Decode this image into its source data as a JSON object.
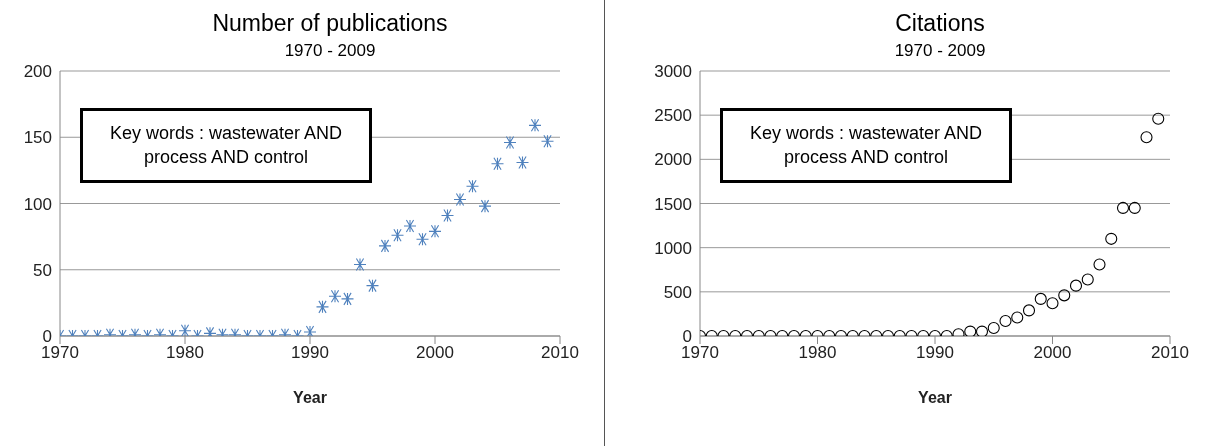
{
  "chart_data": [
    {
      "type": "scatter",
      "title": "Number of publications",
      "subtitle": "1970 - 2009",
      "xlabel": "Year",
      "annotations": [
        "Key words : wastewater AND process AND control"
      ],
      "x": [
        1970,
        1971,
        1972,
        1973,
        1974,
        1975,
        1976,
        1977,
        1978,
        1979,
        1980,
        1981,
        1982,
        1983,
        1984,
        1985,
        1986,
        1987,
        1988,
        1989,
        1990,
        1991,
        1992,
        1993,
        1994,
        1995,
        1996,
        1997,
        1998,
        1999,
        2000,
        2001,
        2002,
        2003,
        2004,
        2005,
        2006,
        2007,
        2008,
        2009
      ],
      "values": [
        0,
        0,
        0,
        0,
        1,
        0,
        1,
        0,
        1,
        0,
        4,
        0,
        2,
        1,
        1,
        0,
        0,
        0,
        1,
        0,
        3,
        22,
        30,
        28,
        54,
        38,
        68,
        76,
        83,
        73,
        79,
        91,
        103,
        113,
        98,
        130,
        146,
        131,
        159,
        147
      ],
      "color": "#4f81bd",
      "marker": "cross",
      "xlim": [
        1970,
        2010
      ],
      "xticks": [
        1970,
        1980,
        1990,
        2000,
        2010
      ],
      "ylim": [
        0,
        200
      ],
      "yticks": [
        0,
        50,
        100,
        150,
        200
      ],
      "grid": "y"
    },
    {
      "type": "scatter",
      "title": "Citations",
      "subtitle": "1970 - 2009",
      "xlabel": "Year",
      "annotations": [
        "Key words : wastewater AND process AND control"
      ],
      "x": [
        1970,
        1971,
        1972,
        1973,
        1974,
        1975,
        1976,
        1977,
        1978,
        1979,
        1980,
        1981,
        1982,
        1983,
        1984,
        1985,
        1986,
        1987,
        1988,
        1989,
        1990,
        1991,
        1992,
        1993,
        1994,
        1995,
        1996,
        1997,
        1998,
        1999,
        2000,
        2001,
        2002,
        2003,
        2004,
        2005,
        2006,
        2007,
        2008,
        2009
      ],
      "values": [
        0,
        0,
        0,
        0,
        0,
        0,
        0,
        0,
        0,
        0,
        0,
        0,
        0,
        0,
        0,
        0,
        0,
        0,
        0,
        0,
        0,
        0,
        20,
        50,
        50,
        90,
        170,
        210,
        290,
        420,
        370,
        460,
        570,
        640,
        810,
        1100,
        1450,
        1450,
        2250,
        2460
      ],
      "color": "#000000",
      "marker": "circle",
      "xlim": [
        1970,
        2010
      ],
      "xticks": [
        1970,
        1980,
        1990,
        2000,
        2010
      ],
      "ylim": [
        0,
        3000
      ],
      "yticks": [
        0,
        500,
        1000,
        1500,
        2000,
        2500,
        3000
      ],
      "grid": "y"
    }
  ]
}
